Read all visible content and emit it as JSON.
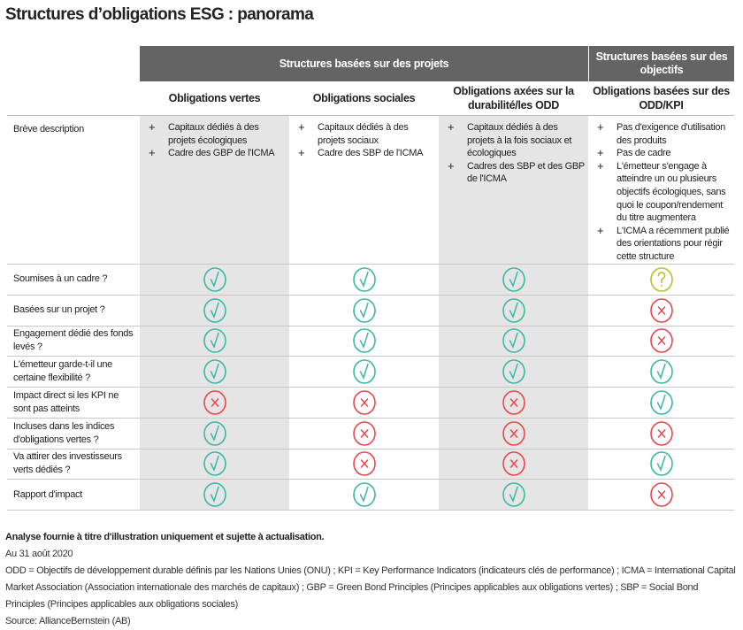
{
  "title": "Structures d’obligations ESG : panorama",
  "group_headers": [
    "Structures basées sur des projets",
    "Structures basées sur des objectifs"
  ],
  "columns": [
    "Obligations vertes",
    "Obligations sociales",
    "Obligations axées sur la durabilité/les ODD",
    "Obligations basées sur des ODD/KPI"
  ],
  "description": {
    "label": "Brève description",
    "cells": [
      [
        "Capitaux dédiés à des projets écologiques",
        "Cadre des GBP de l'ICMA"
      ],
      [
        "Capitaux dédiés à des projets sociaux",
        "Cadre des SBP de l'ICMA"
      ],
      [
        "Capitaux dédiés à des projets à la fois sociaux et écologiques",
        "Cadres des SBP et des GBP de l'ICMA"
      ],
      [
        "Pas d'exigence d'utilisation des produits",
        "Pas de cadre",
        "L'émetteur s'engage à atteindre un ou plusieurs objectifs écologiques, sans quoi le coupon/rendement du titre augmentera",
        "L'ICMA a récemment publié des orientations pour régir cette structure"
      ]
    ]
  },
  "rows": [
    {
      "label": "Soumises à un cadre ?",
      "values": [
        "yes",
        "yes",
        "yes",
        "maybe"
      ]
    },
    {
      "label": "Basées sur un projet ?",
      "values": [
        "yes",
        "yes",
        "yes",
        "no"
      ]
    },
    {
      "label": "Engagement dédié des fonds levés ?",
      "values": [
        "yes",
        "yes",
        "yes",
        "no"
      ]
    },
    {
      "label": "L'émetteur garde-t-il une certaine flexibilité ?",
      "values": [
        "yes",
        "yes",
        "yes",
        "yes"
      ]
    },
    {
      "label": "Impact direct si les KPI ne sont pas atteints",
      "values": [
        "no",
        "no",
        "no",
        "yes"
      ]
    },
    {
      "label": "Incluses dans les indices d'obligations vertes ?",
      "values": [
        "yes",
        "no",
        "no",
        "no"
      ]
    },
    {
      "label": "Va attirer des investisseurs verts dédiés ?",
      "values": [
        "yes",
        "no",
        "no",
        "yes"
      ]
    },
    {
      "label": "Rapport d'impact",
      "values": [
        "yes",
        "yes",
        "yes",
        "no"
      ]
    }
  ],
  "icons": {
    "yes": "check-circle-icon",
    "no": "x-circle-icon",
    "maybe": "question-circle-icon"
  },
  "colors": {
    "yes": "#3db7a6",
    "no": "#e8474c",
    "maybe": "#b3c226",
    "band": "#646464",
    "shade": "#e5e5e5"
  },
  "footer": {
    "disclaimer": "Analyse fournie à titre d'illustration uniquement et sujette à actualisation.",
    "date": "Au 31 août 2020",
    "notes": "ODD = Objectifs de développement durable définis par les Nations Unies (ONU) ; KPI = Key Performance Indicators (indicateurs clés de performance) ; ICMA = International Capital Market Association (Association internationale des marchés de capitaux) ; GBP = Green Bond Principles (Principes applicables aux obligations vertes) ; SBP = Social Bond Principles (Principes applicables aux obligations sociales)",
    "source": "Source: AllianceBernstein (AB)"
  }
}
